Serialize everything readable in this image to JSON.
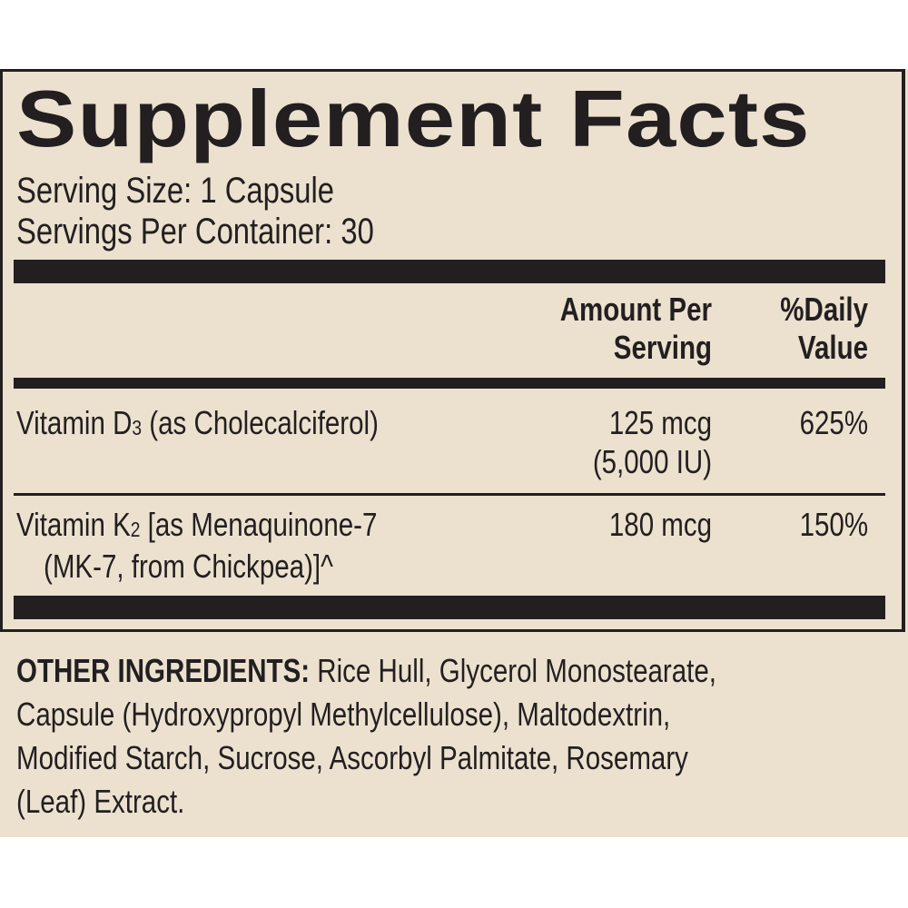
{
  "title": "Supplement Facts",
  "serving_size": "Serving Size: 1 Capsule",
  "servings_per_container": "Servings Per Container: 30",
  "header": {
    "amount_line1": "Amount Per",
    "amount_line2": "Serving",
    "dv_line1": "%Daily",
    "dv_line2": "Value"
  },
  "rows": [
    {
      "name_prefix": "Vitamin D",
      "name_sub": "3",
      "name_suffix": " (as Cholecalciferol)",
      "amount_line1": "125 mcg",
      "amount_line2": "(5,000 IU)",
      "dv": "625%"
    },
    {
      "name_prefix": "Vitamin K",
      "name_sub": "2",
      "name_suffix": " [as Menaquinone-7",
      "name_line2": "(MK-7, from Chickpea)]^",
      "amount_line1": "180 mcg",
      "dv": "150%"
    }
  ],
  "other_ingredients": {
    "label": "OTHER INGREDIENTS:",
    "line1": " Rice Hull, Glycerol Monostearate,",
    "line2": "Capsule (Hydroxypropyl Methylcellulose), Maltodextrin,",
    "line3": "Modified Starch, Sucrose, Ascorbyl Palmitate, Rosemary",
    "line4": "(Leaf) Extract."
  },
  "colors": {
    "background": "#ece1cf",
    "ink": "#231f20"
  }
}
